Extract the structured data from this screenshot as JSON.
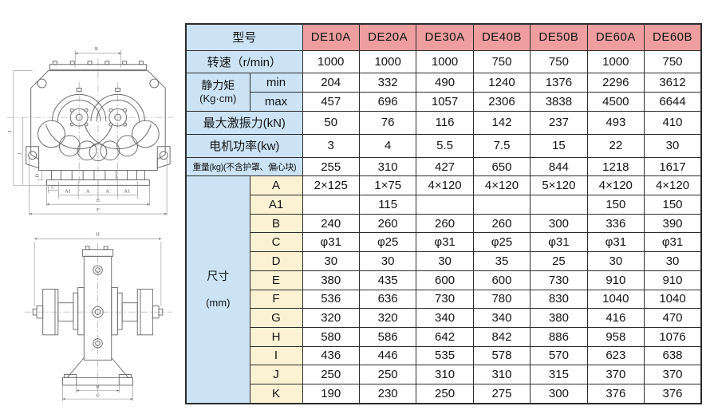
{
  "colors": {
    "model_header_bg": "#ee9e9e",
    "label_bg": "#cbe3f5",
    "dim_letter_bg": "#faf2d3",
    "grid_border": "#2c2c2c",
    "drawing_stroke": "#6f6f6f"
  },
  "table": {
    "model_header_label": "型号",
    "models": [
      "DE10A",
      "DE20A",
      "DE30A",
      "DE40B",
      "DE50B",
      "DE60A",
      "DE60B"
    ],
    "rows": [
      {
        "kind": "full",
        "label": "转速（r/min）",
        "values": [
          "1000",
          "1000",
          "1000",
          "750",
          "750",
          "1000",
          "750"
        ]
      },
      {
        "kind": "group",
        "group": "静力矩",
        "group_sub": "(Kg·cm)",
        "span": 2,
        "gap": false,
        "sub": "min",
        "sub_kind": "blue",
        "values": [
          "204",
          "332",
          "490",
          "1240",
          "1376",
          "2296",
          "3612"
        ]
      },
      {
        "kind": "sub",
        "sub": "max",
        "sub_kind": "blue",
        "values": [
          "457",
          "696",
          "1057",
          "2306",
          "3838",
          "4500",
          "6644"
        ]
      },
      {
        "kind": "full",
        "label": "最大激振力(kN)",
        "values": [
          "50",
          "76",
          "116",
          "142",
          "237",
          "493",
          "410"
        ]
      },
      {
        "kind": "full",
        "label": "电机功率(kw)",
        "values": [
          "3",
          "4",
          "5.5",
          "7.5",
          "15",
          "22",
          "30"
        ]
      },
      {
        "kind": "full",
        "label": "重量(kg)(不含护罩、偏心块)",
        "small": true,
        "values": [
          "255",
          "310",
          "427",
          "650",
          "844",
          "1218",
          "1617"
        ]
      },
      {
        "kind": "group",
        "group": "尺寸",
        "group_sub": "(mm)",
        "span": 12,
        "gap": true,
        "sub": "A",
        "sub_kind": "dim",
        "values": [
          "2×125",
          "1×75",
          "4×120",
          "4×120",
          "5×120",
          "4×120",
          "4×120"
        ]
      },
      {
        "kind": "sub",
        "sub": "A1",
        "sub_kind": "dim",
        "values": [
          "",
          "115",
          "",
          "",
          "",
          "150",
          "150"
        ]
      },
      {
        "kind": "sub",
        "sub": "B",
        "sub_kind": "dim",
        "values": [
          "240",
          "260",
          "260",
          "260",
          "300",
          "336",
          "390"
        ]
      },
      {
        "kind": "sub",
        "sub": "C",
        "sub_kind": "dim",
        "values": [
          "φ31",
          "φ25",
          "φ31",
          "φ25",
          "φ31",
          "φ31",
          "φ31"
        ]
      },
      {
        "kind": "sub",
        "sub": "D",
        "sub_kind": "dim",
        "values": [
          "30",
          "30",
          "30",
          "35",
          "25",
          "30",
          "30"
        ]
      },
      {
        "kind": "sub",
        "sub": "E",
        "sub_kind": "dim",
        "values": [
          "380",
          "435",
          "600",
          "600",
          "730",
          "910",
          "910"
        ]
      },
      {
        "kind": "sub",
        "sub": "F",
        "sub_kind": "dim",
        "values": [
          "536",
          "636",
          "730",
          "780",
          "830",
          "1040",
          "1040"
        ]
      },
      {
        "kind": "sub",
        "sub": "G",
        "sub_kind": "dim",
        "values": [
          "320",
          "320",
          "340",
          "340",
          "380",
          "416",
          "470"
        ]
      },
      {
        "kind": "sub",
        "sub": "H",
        "sub_kind": "dim",
        "values": [
          "580",
          "586",
          "642",
          "842",
          "886",
          "958",
          "1076"
        ]
      },
      {
        "kind": "sub",
        "sub": "I",
        "sub_kind": "dim",
        "values": [
          "436",
          "446",
          "535",
          "578",
          "570",
          "623",
          "638"
        ]
      },
      {
        "kind": "sub",
        "sub": "J",
        "sub_kind": "dim",
        "values": [
          "250",
          "250",
          "310",
          "310",
          "315",
          "370",
          "370"
        ]
      },
      {
        "kind": "sub",
        "sub": "K",
        "sub_kind": "dim",
        "values": [
          "190",
          "230",
          "250",
          "275",
          "300",
          "376",
          "376"
        ]
      }
    ]
  },
  "drawings": {
    "top_view": {
      "dims": {
        "k": "K",
        "a1_left": "A1",
        "a_left": "A",
        "a_right": "A",
        "a1_right": "A1",
        "e": "E",
        "f": "F",
        "c": "C",
        "d": "D",
        "i": "I",
        "j": "J"
      }
    },
    "side_view": {
      "dims": {
        "h": "H",
        "b": "B",
        "g": "G"
      }
    }
  }
}
